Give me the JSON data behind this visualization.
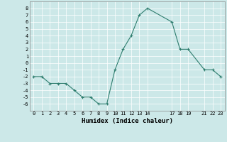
{
  "xlabel": "Humidex (Indice chaleur)",
  "x": [
    0,
    1,
    2,
    3,
    4,
    5,
    6,
    7,
    8,
    9,
    10,
    11,
    12,
    13,
    14,
    17,
    18,
    19,
    21,
    22,
    23
  ],
  "y": [
    -2,
    -2,
    -3,
    -3,
    -3,
    -4,
    -5,
    -5,
    -6,
    -6,
    -1,
    2,
    4,
    7,
    8,
    6,
    2,
    2,
    -1,
    -1,
    -2
  ],
  "line_color": "#2e7d6e",
  "marker": "+",
  "marker_size": 3,
  "marker_lw": 0.8,
  "bg_color": "#cce8e8",
  "grid_color": "#ffffff",
  "xlim": [
    -0.5,
    23.5
  ],
  "ylim": [
    -7,
    9
  ],
  "yticks": [
    -6,
    -5,
    -4,
    -3,
    -2,
    -1,
    0,
    1,
    2,
    3,
    4,
    5,
    6,
    7,
    8
  ],
  "xticks": [
    0,
    1,
    2,
    3,
    4,
    5,
    6,
    7,
    8,
    9,
    10,
    11,
    12,
    13,
    14,
    17,
    18,
    19,
    21,
    22,
    23
  ],
  "tick_fontsize": 5,
  "label_fontsize": 6.5,
  "line_width": 0.8
}
